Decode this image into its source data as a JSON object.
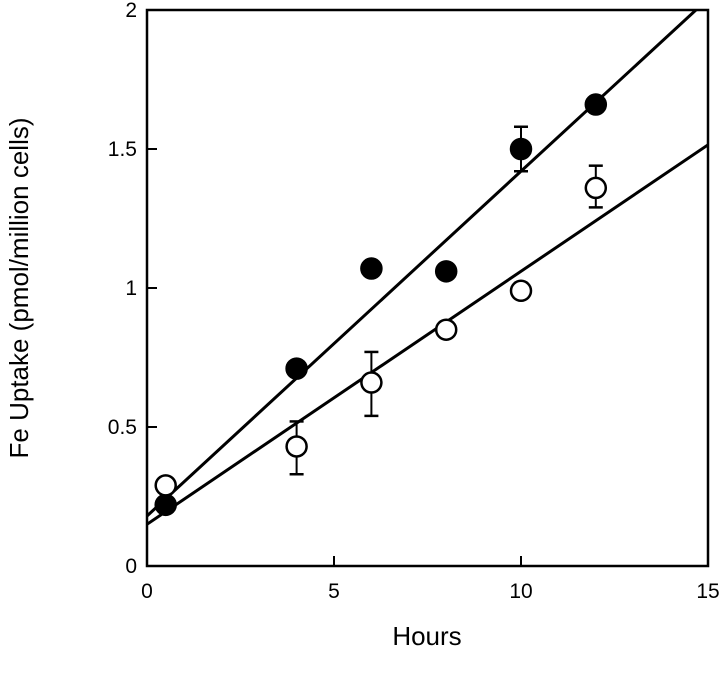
{
  "chart_data": {
    "type": "scatter",
    "xlabel": "Hours",
    "ylabel": "Fe Uptake (pmol/million cells)",
    "xlim": [
      0,
      15
    ],
    "ylim": [
      0,
      2
    ],
    "xticks": [
      0,
      5,
      10,
      15
    ],
    "xtick_labels": [
      "0",
      "5",
      "10",
      "15"
    ],
    "yticks": [
      0,
      0.5,
      1,
      1.5,
      2
    ],
    "ytick_labels": [
      "0",
      "0.5",
      "1",
      "1.5",
      "2"
    ],
    "grid": false,
    "series": [
      {
        "marker": "filled-circle",
        "color": "#000000",
        "points": [
          {
            "x": 0.5,
            "y": 0.22
          },
          {
            "x": 4,
            "y": 0.71
          },
          {
            "x": 6,
            "y": 1.07
          },
          {
            "x": 8,
            "y": 1.06
          },
          {
            "x": 10,
            "y": 1.5,
            "err_low": 0.08,
            "err_high": 0.08
          },
          {
            "x": 12,
            "y": 1.66
          }
        ],
        "fit": {
          "intercept": 0.18,
          "slope": 0.124
        }
      },
      {
        "marker": "open-circle",
        "color": "#000000",
        "points": [
          {
            "x": 0.5,
            "y": 0.29
          },
          {
            "x": 4,
            "y": 0.43,
            "err_low": 0.1,
            "err_high": 0.09
          },
          {
            "x": 6,
            "y": 0.66,
            "err_low": 0.12,
            "err_high": 0.11
          },
          {
            "x": 8,
            "y": 0.85
          },
          {
            "x": 10,
            "y": 0.99
          },
          {
            "x": 12,
            "y": 1.36,
            "err_low": 0.07,
            "err_high": 0.08
          }
        ],
        "fit": {
          "intercept": 0.15,
          "slope": 0.091
        }
      }
    ]
  }
}
